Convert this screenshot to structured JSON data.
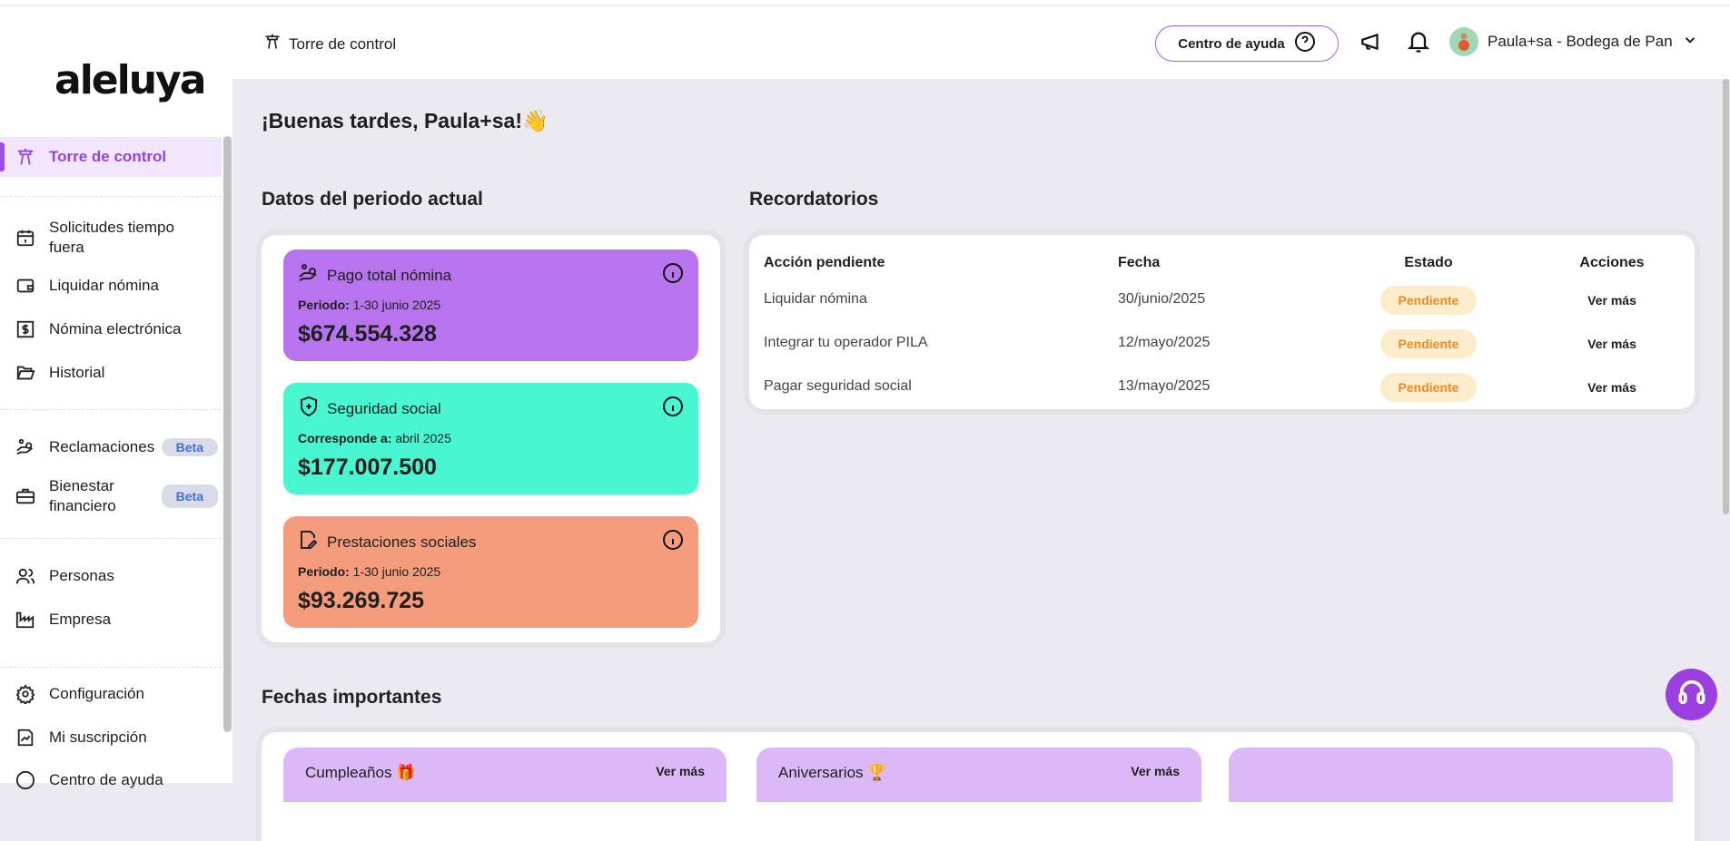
{
  "brand": {
    "logo": "aleluya"
  },
  "sidebar": {
    "items": [
      {
        "label": "Torre de control",
        "icon": "tower-icon"
      },
      {
        "label": "Solicitudes tiempo fuera",
        "icon": "calendar-icon"
      },
      {
        "label": "Liquidar nómina",
        "icon": "wallet-icon"
      },
      {
        "label": "Nómina electrónica",
        "icon": "receipt-dollar-icon"
      },
      {
        "label": "Historial",
        "icon": "folder-open-icon"
      },
      {
        "label": "Reclamaciones",
        "icon": "hand-people-icon",
        "badge": "Beta"
      },
      {
        "label": "Bienestar financiero",
        "icon": "briefcase-icon",
        "badge": "Beta"
      },
      {
        "label": "Personas",
        "icon": "users-icon"
      },
      {
        "label": "Empresa",
        "icon": "factory-icon"
      },
      {
        "label": "Configuración",
        "icon": "gear-icon"
      },
      {
        "label": "Mi suscripción",
        "icon": "chart-doc-icon"
      },
      {
        "label": "Centro de ayuda",
        "icon": "help-icon"
      }
    ]
  },
  "header": {
    "title": "Torre de control",
    "help_button": "Centro de ayuda",
    "user": "Paula+sa - Bodega de Pan"
  },
  "greeting": "¡Buenas tardes, Paula+sa!👋",
  "period": {
    "title": "Datos del periodo actual",
    "cards": [
      {
        "title": "Pago total nómina",
        "label": "Periodo:",
        "value": "1-30 junio 2025",
        "amount": "$674.554.328",
        "color": "#b873ef"
      },
      {
        "title": "Seguridad social",
        "label": "Corresponde a:",
        "value": "abril 2025",
        "amount": "$177.007.500",
        "color": "#49f6d2"
      },
      {
        "title": "Prestaciones sociales",
        "label": "Periodo:",
        "value": "1-30 junio 2025",
        "amount": "$93.269.725",
        "color": "#f59c7d"
      }
    ]
  },
  "reminders": {
    "title": "Recordatorios",
    "columns": [
      "Acción pendiente",
      "Fecha",
      "Estado",
      "Acciones"
    ],
    "rows": [
      {
        "action": "Liquidar nómina",
        "date": "30/junio/2025",
        "status": "Pendiente",
        "link": "Ver más"
      },
      {
        "action": "Integrar tu operador PILA",
        "date": "12/mayo/2025",
        "status": "Pendiente",
        "link": "Ver más"
      },
      {
        "action": "Pagar seguridad social",
        "date": "13/mayo/2025",
        "status": "Pendiente",
        "link": "Ver más"
      }
    ]
  },
  "dates": {
    "title": "Fechas importantes",
    "cards": [
      {
        "title": "Cumpleaños 🎁",
        "link": "Ver más"
      },
      {
        "title": "Aniversarios 🏆",
        "link": "Ver más"
      }
    ]
  }
}
